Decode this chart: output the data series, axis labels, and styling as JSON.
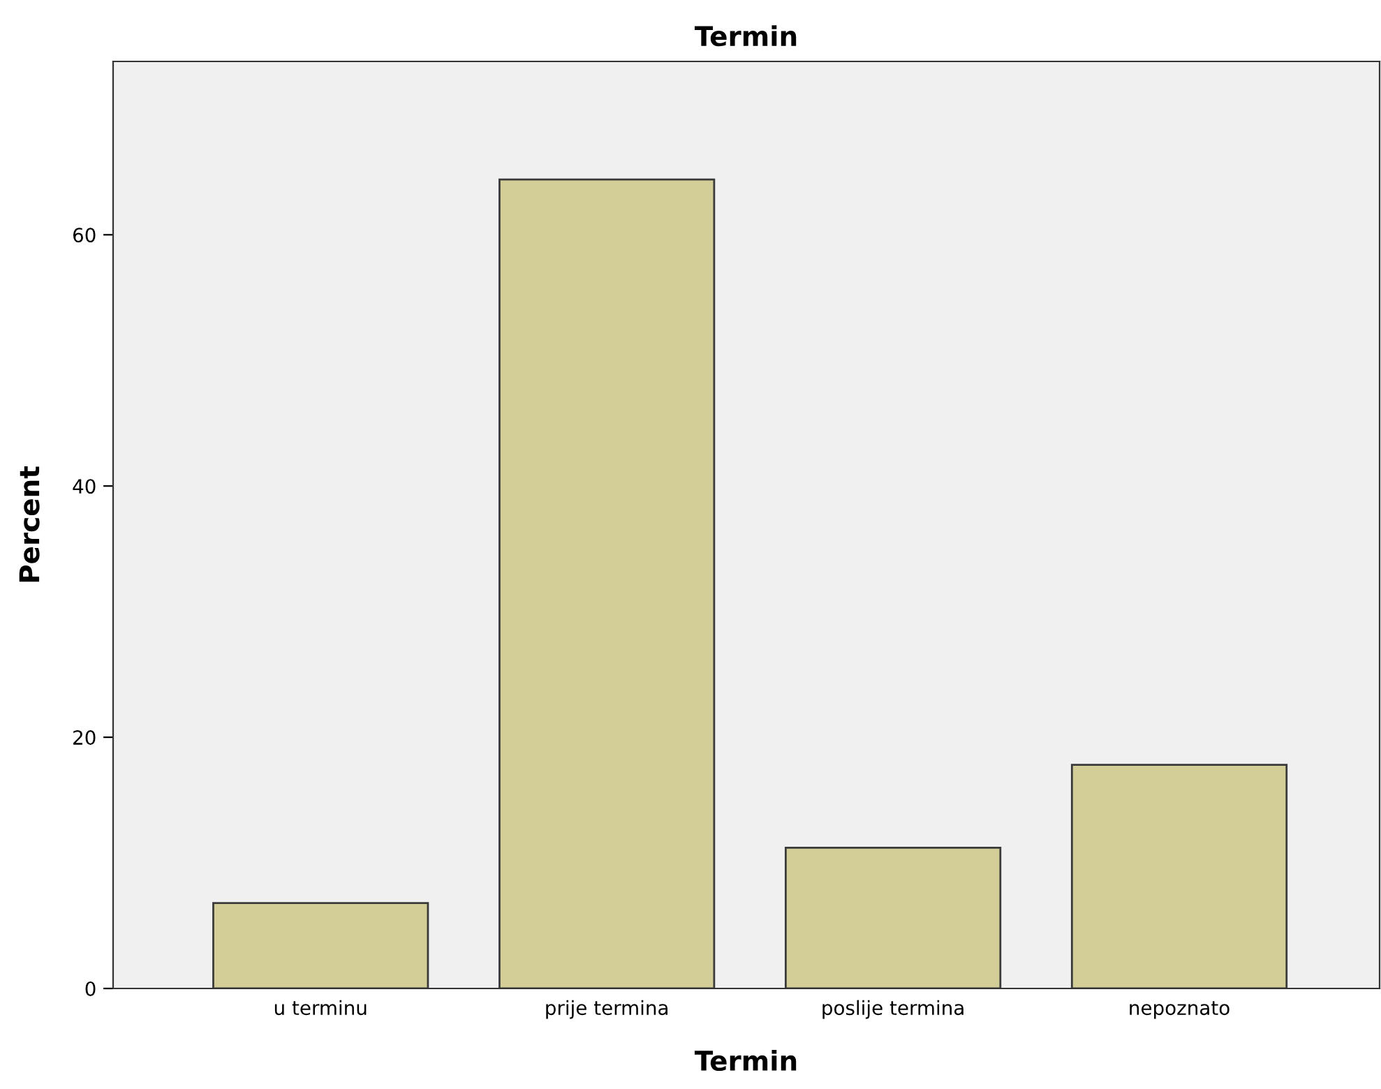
{
  "chart_data": {
    "type": "bar",
    "title": "Termin",
    "xlabel": "Termin",
    "ylabel": "Percent",
    "categories": [
      "u terminu",
      "prije termina",
      "poslije termina",
      "nepoznato"
    ],
    "values": [
      6.8,
      64.4,
      11.2,
      17.8
    ],
    "color": "#d3ce97",
    "ylim": [
      0,
      73.8
    ],
    "yticks": [
      0,
      20,
      40,
      60
    ],
    "grid": false,
    "legend": false
  }
}
